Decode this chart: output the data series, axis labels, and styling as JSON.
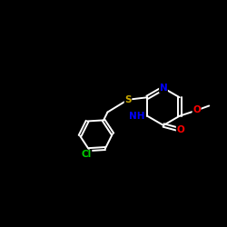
{
  "background_color": "#000000",
  "bond_color": "#ffffff",
  "atom_colors": {
    "N": "#0000ff",
    "S": "#ccaa00",
    "O": "#ff0000",
    "Cl": "#00cc00",
    "C": "#ffffff",
    "H": "#ffffff"
  },
  "figsize": [
    2.5,
    2.5
  ],
  "dpi": 100,
  "xlim": [
    0,
    10
  ],
  "ylim": [
    0,
    10
  ]
}
